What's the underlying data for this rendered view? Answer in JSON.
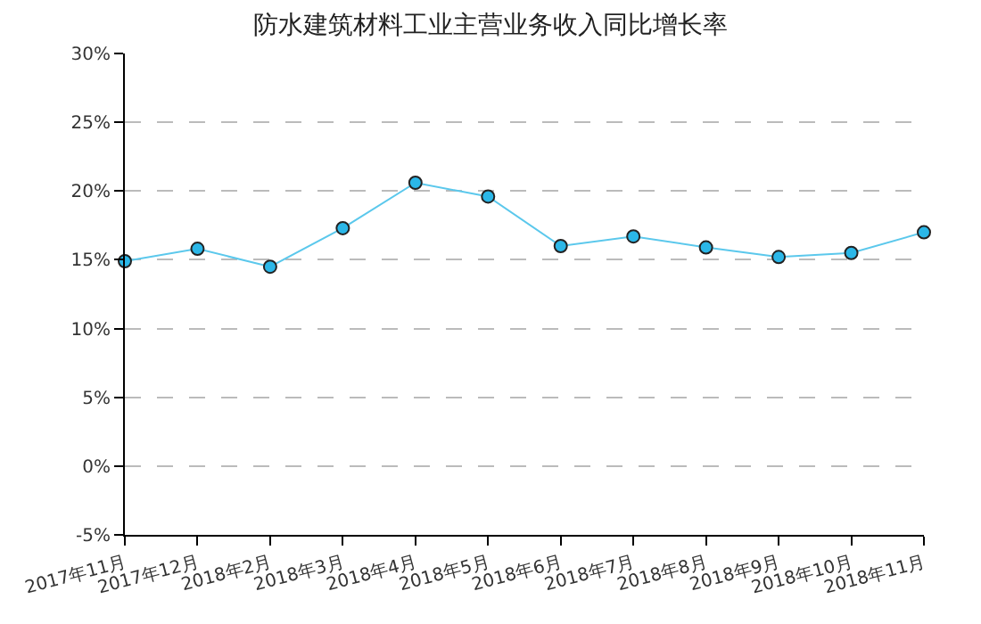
{
  "chart_data": {
    "type": "line",
    "title": "防水建筑材料工业主营业务收入同比增长率",
    "categories": [
      "2017年11月",
      "2017年12月",
      "2018年2月",
      "2018年3月",
      "2018年4月",
      "2018年5月",
      "2018年6月",
      "2018年7月",
      "2018年8月",
      "2018年9月",
      "2018年10月",
      "2018年11月"
    ],
    "series": [
      {
        "color": "#5bc8ec",
        "values": [
          14.9,
          15.8,
          14.5,
          17.3,
          20.6,
          19.6,
          16.0,
          16.7,
          15.9,
          15.2,
          15.5,
          17.0
        ]
      }
    ],
    "ylim": [
      -5,
      30
    ],
    "yticks": [
      {
        "value": -5,
        "label": "-5%"
      },
      {
        "value": 0,
        "label": "0%"
      },
      {
        "value": 5,
        "label": "5%"
      },
      {
        "value": 10,
        "label": "10%"
      },
      {
        "value": 15,
        "label": "15%"
      },
      {
        "value": 20,
        "label": "20%"
      },
      {
        "value": 25,
        "label": "25%"
      },
      {
        "value": 30,
        "label": "30%"
      }
    ],
    "grid": "y",
    "marker": "circle",
    "line_style": "solid",
    "legend": false
  }
}
